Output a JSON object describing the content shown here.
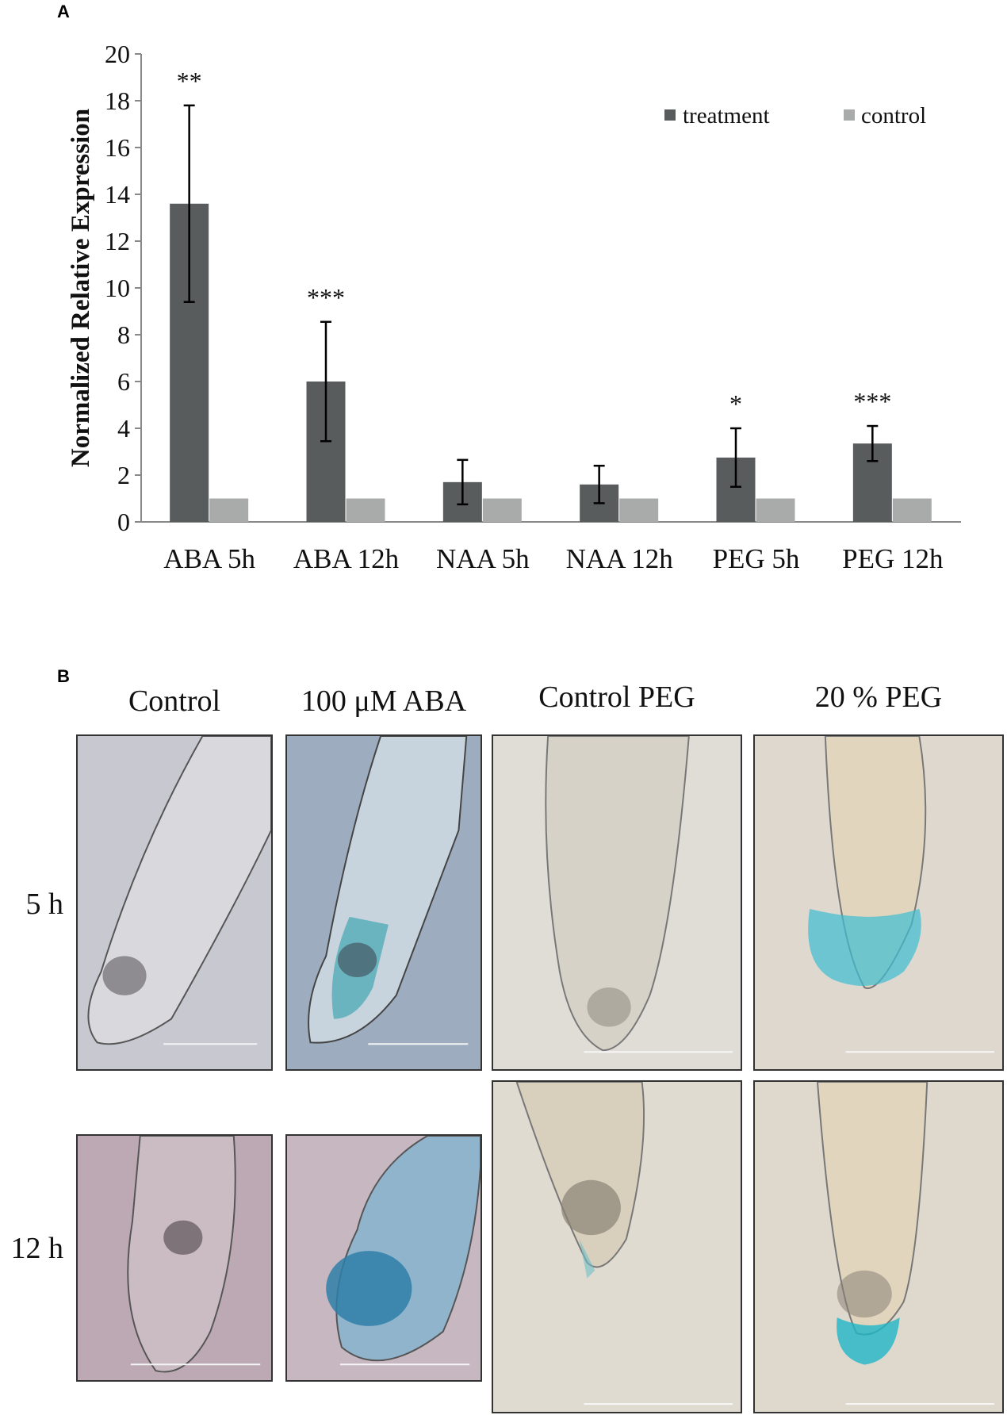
{
  "panels": {
    "a_letter": "A",
    "b_letter": "B"
  },
  "chart_data": {
    "type": "bar",
    "title": "",
    "xlabel": "",
    "ylabel": "Normalized Relative Expression",
    "ylim": [
      0,
      20
    ],
    "yticks": [
      0,
      2,
      4,
      6,
      8,
      10,
      12,
      14,
      16,
      18,
      20
    ],
    "categories": [
      "ABA 5h",
      "ABA 12h",
      "NAA 5h",
      "NAA 12h",
      "PEG 5h",
      "PEG 12h"
    ],
    "series": [
      {
        "name": "treatment",
        "color": "#585c5d",
        "values": [
          13.6,
          6.0,
          1.7,
          1.6,
          2.75,
          3.35
        ],
        "error_low": [
          9.4,
          3.45,
          0.75,
          0.8,
          1.5,
          2.6
        ],
        "error_high": [
          17.8,
          8.55,
          2.65,
          2.4,
          4.0,
          4.1
        ]
      },
      {
        "name": "control",
        "color": "#a9abab",
        "values": [
          1,
          1,
          1,
          1,
          1,
          1
        ]
      }
    ],
    "significance": [
      "**",
      "***",
      "",
      "",
      "*",
      "***"
    ],
    "legend_position": "top-right",
    "grid": false
  },
  "figure_b": {
    "columns": [
      "Control",
      "100 μM ABA",
      "Control PEG",
      "20 % PEG"
    ],
    "rows": [
      "5 h",
      "12 h"
    ]
  }
}
